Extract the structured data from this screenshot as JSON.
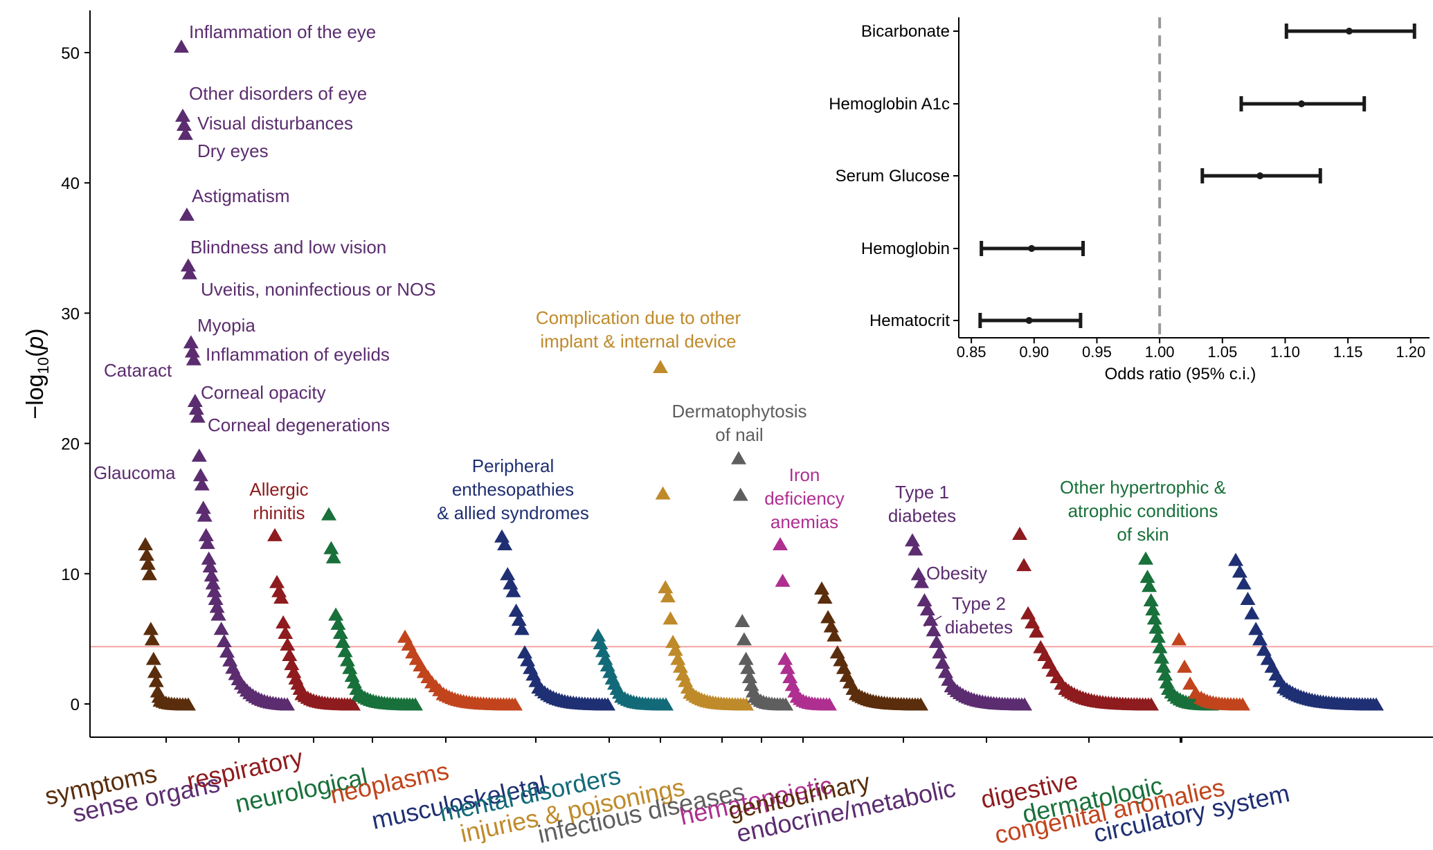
{
  "chart_data": [
    {
      "type": "scatter",
      "title": "",
      "xlabel": "",
      "ylabel": "−log10(p)",
      "ylim": [
        0,
        52
      ],
      "yticks": [
        0,
        10,
        20,
        30,
        40,
        50
      ],
      "threshold": 4.4,
      "grid": false,
      "categories": [
        {
          "name": "symptoms",
          "color": "#5A2D0C",
          "top": [
            12.3,
            11.5,
            10.8,
            10.0,
            5.8,
            5.0,
            3.5,
            2.5,
            1.8,
            1.0,
            0.6,
            0.3
          ]
        },
        {
          "name": "sense organs",
          "color": "#5B2C6F",
          "top": [
            50.5,
            45.2,
            44.5,
            43.8,
            37.6,
            33.7,
            33.1,
            27.8,
            27.1,
            26.5,
            23.3,
            22.7,
            22.1,
            19.1,
            17.6,
            16.9,
            15.1,
            14.5,
            13.0,
            12.4,
            11.2,
            10.6,
            9.9,
            9.3,
            8.7,
            8.1,
            7.5,
            6.9
          ]
        },
        {
          "name": "respiratory",
          "color": "#8E1B1E",
          "top": [
            13.0,
            9.4,
            8.7,
            8.2,
            6.3,
            5.5,
            4.6,
            3.8,
            3.1,
            2.5,
            2.0,
            1.6,
            1.2,
            0.8
          ]
        },
        {
          "name": "neurological",
          "color": "#18703A",
          "top": [
            14.6,
            12.0,
            11.3,
            6.9,
            6.2,
            5.5,
            4.8,
            4.1,
            3.4,
            2.8,
            2.2,
            1.7,
            1.2,
            0.8
          ]
        },
        {
          "name": "neoplasms",
          "color": "#C1441C",
          "top": [
            5.2,
            4.6,
            4.0,
            3.5,
            3.0,
            2.5,
            2.1,
            1.7,
            1.4,
            1.1,
            0.8
          ]
        },
        {
          "name": "musculoskeletal",
          "color": "#1F2F73",
          "top": [
            12.9,
            12.3,
            10.0,
            9.3,
            8.7,
            7.2,
            6.5,
            5.8,
            4.0,
            3.4,
            2.8,
            2.3,
            1.8,
            1.3
          ]
        },
        {
          "name": "mental disorders",
          "color": "#126A78",
          "top": [
            5.3,
            4.7,
            4.1,
            3.5,
            3.0,
            2.5,
            2.0,
            1.6,
            1.2,
            0.9,
            0.6
          ]
        },
        {
          "name": "injuries & poisonings",
          "color": "#BF8A2A",
          "top": [
            25.9,
            16.2,
            9.0,
            8.3,
            6.6,
            4.8,
            4.2,
            3.5,
            2.9,
            2.3,
            1.8,
            1.3,
            0.9
          ]
        },
        {
          "name": "infectious diseases",
          "color": "#5E5E5E",
          "top": [
            18.9,
            16.1,
            6.4,
            5.0,
            3.5,
            2.8,
            2.1,
            1.5,
            1.0,
            0.6
          ]
        },
        {
          "name": "hematopoietic",
          "color": "#AE2F90",
          "top": [
            12.3,
            9.5,
            3.5,
            2.8,
            2.1,
            1.5,
            1.0,
            0.6
          ]
        },
        {
          "name": "genitourinary",
          "color": "#5A2D0C",
          "top": [
            8.9,
            8.2,
            6.7,
            6.0,
            5.3,
            4.0,
            3.4,
            2.8,
            2.2,
            1.7,
            1.2,
            0.8
          ]
        },
        {
          "name": "endocrine/metabolic",
          "color": "#5B2C6F",
          "top": [
            12.6,
            11.9,
            10.0,
            9.4,
            8.0,
            7.3,
            6.5,
            5.7,
            4.8,
            4.0,
            3.2,
            2.5,
            1.9,
            1.4
          ]
        },
        {
          "name": "digestive",
          "color": "#8E1B1E",
          "top": [
            13.1,
            10.7,
            7.0,
            6.3,
            5.6,
            4.4,
            3.8,
            3.2,
            2.6,
            2.1,
            1.6,
            1.2
          ]
        },
        {
          "name": "dermatologic",
          "color": "#18703A",
          "top": [
            11.2,
            9.8,
            9.1,
            8.0,
            7.3,
            6.6,
            5.9,
            5.2,
            4.4,
            3.6,
            2.9,
            2.3,
            1.7,
            1.2
          ]
        },
        {
          "name": "congenital anomalies",
          "color": "#C1441C",
          "top": [
            5.0,
            2.9,
            1.6,
            0.9,
            0.5
          ]
        },
        {
          "name": "circulatory system",
          "color": "#1F2F73",
          "top": [
            11.1,
            10.2,
            9.3,
            8.1,
            7.0,
            5.8,
            5.0,
            4.2,
            3.5,
            2.9,
            2.3,
            1.8,
            1.3
          ]
        }
      ],
      "annotations": [
        {
          "text": "Inflammation of the eye",
          "category": "sense organs",
          "y": 50.5
        },
        {
          "text": "Other disorders of eye",
          "category": "sense organs",
          "y": 45.2
        },
        {
          "text": "Visual disturbances",
          "category": "sense organs",
          "y": 44.5
        },
        {
          "text": "Dry eyes",
          "category": "sense organs",
          "y": 43.8
        },
        {
          "text": "Astigmatism",
          "category": "sense organs",
          "y": 37.6
        },
        {
          "text": "Blindness and low vision",
          "category": "sense organs",
          "y": 33.7
        },
        {
          "text": "Uveitis, noninfectious or NOS",
          "category": "sense organs",
          "y": 33.1
        },
        {
          "text": "Myopia",
          "category": "sense organs",
          "y": 27.8
        },
        {
          "text": "Inflammation of eyelids",
          "category": "sense organs",
          "y": 26.5
        },
        {
          "text": "Cataract",
          "category": "sense organs",
          "y": 27.1
        },
        {
          "text": "Corneal opacity",
          "category": "sense organs",
          "y": 23.3
        },
        {
          "text": "Corneal degenerations",
          "category": "sense organs",
          "y": 22.7
        },
        {
          "text": "Glaucoma",
          "category": "sense organs",
          "y": 19.1
        },
        {
          "text": "Allergic rhinitis",
          "category": "respiratory",
          "y": 13.0
        },
        {
          "text": "Peripheral enthesopathies & allied syndromes",
          "category": "musculoskeletal",
          "y": 12.9
        },
        {
          "text": "Complication due to other implant & internal device",
          "category": "injuries & poisonings",
          "y": 25.9
        },
        {
          "text": "Dermatophytosis of nail",
          "category": "infectious diseases",
          "y": 18.9
        },
        {
          "text": "Iron deficiency anemias",
          "category": "hematopoietic",
          "y": 12.3
        },
        {
          "text": "Type 1 diabetes",
          "category": "endocrine/metabolic",
          "y": 12.6
        },
        {
          "text": "Obesity",
          "category": "endocrine/metabolic",
          "y": 10.0
        },
        {
          "text": "Type 2 diabetes",
          "category": "endocrine/metabolic",
          "y": 6.5
        },
        {
          "text": "Other hypertrophic & atrophic conditions of skin",
          "category": "dermatologic",
          "y": 11.2
        }
      ]
    },
    {
      "type": "scatter",
      "subtype": "forest",
      "title": "",
      "xlabel": "Odds ratio (95% c.i.)",
      "ylabel": "",
      "xlim": [
        0.84,
        1.215
      ],
      "xticks": [
        "0.85",
        "0.90",
        "0.95",
        "1.00",
        "1.05",
        "1.10",
        "1.15",
        "1.20"
      ],
      "reference_line": 1.0,
      "items": [
        {
          "label": "Bicarbonate",
          "or": 1.151,
          "lo": 1.101,
          "hi": 1.203
        },
        {
          "label": "Hemoglobin A1c",
          "or": 1.113,
          "lo": 1.065,
          "hi": 1.163
        },
        {
          "label": "Serum Glucose",
          "or": 1.08,
          "lo": 1.034,
          "hi": 1.128
        },
        {
          "label": "Hemoglobin",
          "or": 0.898,
          "lo": 0.858,
          "hi": 0.939
        },
        {
          "label": "Hematocrit",
          "or": 0.896,
          "lo": 0.857,
          "hi": 0.937
        }
      ]
    }
  ]
}
